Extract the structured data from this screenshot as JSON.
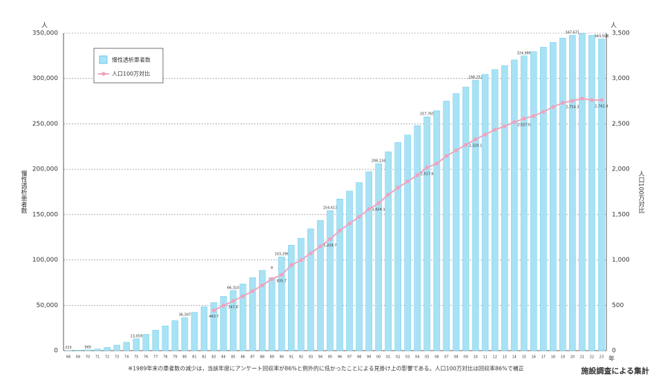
{
  "chart_data": {
    "type": "bar_line",
    "y_unit": "人",
    "y2_unit": "人",
    "x_unit": "年",
    "ylabel": "慢性透析患者数",
    "y2label": "人口100万対比",
    "footnote": "※1989年末の患者数の減少は，当該年度にアンケート回収率が86%と例外的に低かったことによる見掛け上の影響である。人口100万対比は回収率86%で補正",
    "source": "施設調査による集計",
    "annotation": "※",
    "legend": "top-left",
    "categories": [
      "68",
      "69",
      "70",
      "71",
      "72",
      "73",
      "74",
      "75",
      "76",
      "77",
      "78",
      "79",
      "80",
      "81",
      "82",
      "83",
      "84",
      "85",
      "86",
      "87",
      "88",
      "89",
      "90",
      "91",
      "92",
      "93",
      "94",
      "95",
      "96",
      "97",
      "98",
      "99",
      "00",
      "01",
      "02",
      "03",
      "04",
      "05",
      "06",
      "07",
      "08",
      "09",
      "10",
      "11",
      "12",
      "13",
      "14",
      "15",
      "16",
      "17",
      "18",
      "19",
      "20",
      "21",
      "22",
      "23"
    ],
    "series": [
      {
        "name": "慢性透析患者数",
        "type": "bar",
        "color": "#a9e2f5",
        "values": [
          215,
          500,
          949,
          1800,
          3600,
          6100,
          9200,
          13059,
          18000,
          22500,
          27300,
          33000,
          36397,
          42200,
          48400,
          53000,
          59800,
          66310,
          73500,
          80500,
          88500,
          80500,
          103296,
          116300,
          123900,
          134300,
          143700,
          154413,
          167200,
          175900,
          185300,
          197200,
          206134,
          219200,
          229500,
          237700,
          248100,
          257765,
          264500,
          275100,
          283400,
          290600,
          298252,
          304600,
          309900,
          314200,
          320400,
          324986,
          329600,
          334500,
          339800,
          344600,
          347671,
          349700,
          347500,
          343508
        ],
        "value_labels": [
          "215",
          null,
          "949",
          null,
          null,
          null,
          null,
          "13,059",
          null,
          null,
          null,
          null,
          "36,397",
          null,
          null,
          null,
          null,
          "66,310",
          null,
          null,
          null,
          null,
          "103,296",
          null,
          null,
          null,
          null,
          "154,413",
          null,
          null,
          null,
          null,
          "206,134",
          null,
          null,
          null,
          null,
          "257,765",
          null,
          null,
          null,
          null,
          "298,252",
          null,
          null,
          null,
          null,
          "324,986",
          null,
          null,
          null,
          null,
          "347,671",
          null,
          null,
          "343,508"
        ]
      },
      {
        "name": "人口100万対比",
        "type": "line",
        "axis": "y2",
        "color": "#f0a3bd",
        "values": [
          null,
          null,
          null,
          null,
          null,
          null,
          null,
          null,
          null,
          null,
          null,
          null,
          null,
          null,
          null,
          443.7,
          496,
          547.6,
          600,
          655,
          720,
          790,
          835.7,
          943,
          997,
          1073,
          1149,
          1229.7,
          1324,
          1400,
          1476,
          1560,
          1624.1,
          1720,
          1796,
          1865,
          1933,
          2017.6,
          2062,
          2146,
          2207,
          2268,
          2329.1,
          2382,
          2435,
          2473,
          2519,
          2557.0,
          2587,
          2633,
          2686,
          2732,
          2754.3,
          2778,
          2763,
          2762.4
        ],
        "value_labels": [
          null,
          null,
          null,
          null,
          null,
          null,
          null,
          null,
          null,
          null,
          null,
          null,
          null,
          null,
          null,
          "443.7",
          null,
          "547.6",
          null,
          null,
          null,
          null,
          "835.7",
          null,
          null,
          null,
          null,
          "1,229.7",
          null,
          null,
          null,
          null,
          "1,624.1",
          null,
          null,
          null,
          null,
          "2,017.6",
          null,
          null,
          null,
          null,
          "2,329.1",
          null,
          null,
          null,
          null,
          "2,557.0",
          null,
          null,
          null,
          null,
          "2,754.3",
          null,
          null,
          "2,762.4"
        ]
      }
    ],
    "ylim": [
      0,
      350000
    ],
    "yticks": [
      0,
      {
        "value": 50000,
        "label": "50,000"
      },
      {
        "value": 100000,
        "label": "100,000"
      },
      {
        "value": 150000,
        "label": "150,000"
      },
      {
        "value": 200000,
        "label": "200,000"
      },
      {
        "value": 250000,
        "label": "250,000"
      },
      {
        "value": 300000,
        "label": "300,000"
      },
      {
        "value": 350000,
        "label": "350,000"
      }
    ],
    "y2lim": [
      0,
      3500
    ],
    "y2ticks": [
      0,
      500,
      {
        "value": 1000,
        "label": "1,000"
      },
      {
        "value": 1500,
        "label": "1,500"
      },
      {
        "value": 2000,
        "label": "2,000"
      },
      {
        "value": 2500,
        "label": "2,500"
      },
      {
        "value": 3000,
        "label": "3,000"
      },
      {
        "value": 3500,
        "label": "3,500"
      }
    ],
    "grid": true
  }
}
